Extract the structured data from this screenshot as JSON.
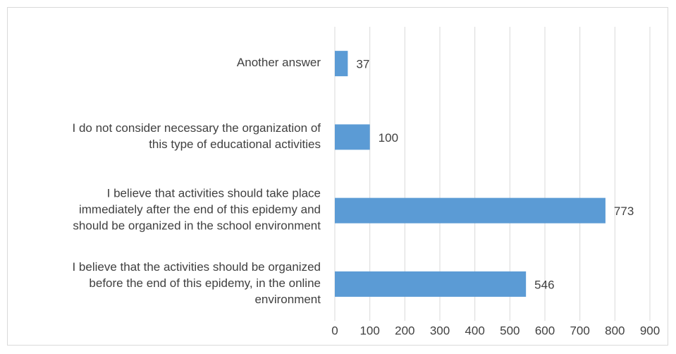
{
  "chart_data": {
    "type": "bar",
    "orientation": "horizontal",
    "categories": [
      "Another answer",
      "I do not consider necessary the organization of\nthis type of educational activities",
      "I believe that activities should take place\nimmediately after the end of this epidemy and\nshould be organized in the school environment",
      "I believe that the activities should be organized\nbefore the end of this epidemy, in the online\nenvironment"
    ],
    "values": [
      37,
      100,
      773,
      546
    ],
    "color": "#5b9bd5",
    "xlim": [
      0,
      900
    ],
    "xticks": [
      0,
      100,
      200,
      300,
      400,
      500,
      600,
      700,
      800,
      900
    ],
    "grid": true
  }
}
